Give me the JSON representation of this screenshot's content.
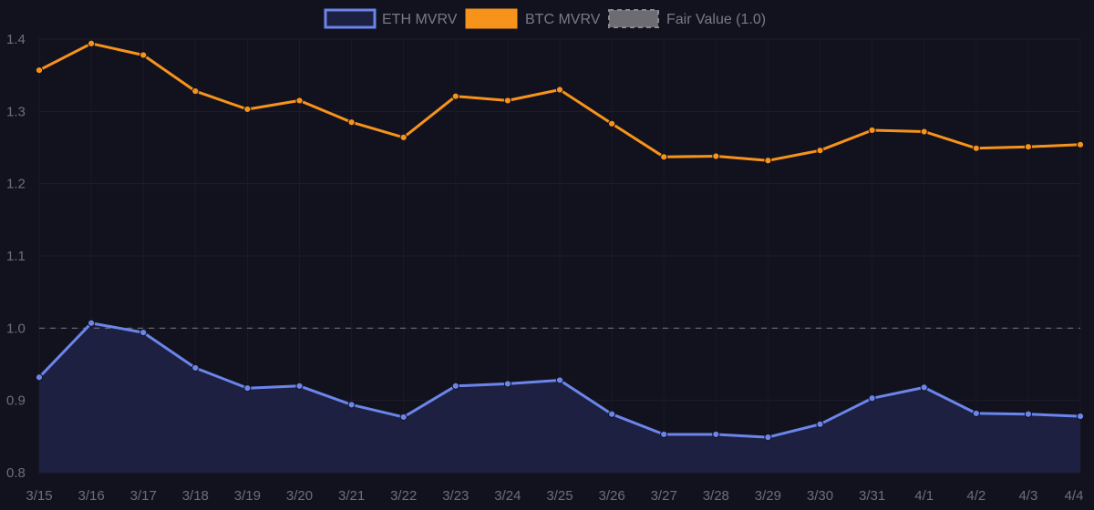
{
  "chart_data": {
    "type": "line",
    "categories": [
      "3/15",
      "3/16",
      "3/17",
      "3/18",
      "3/19",
      "3/20",
      "3/21",
      "3/22",
      "3/23",
      "3/24",
      "3/25",
      "3/26",
      "3/27",
      "3/28",
      "3/29",
      "3/30",
      "3/31",
      "4/1",
      "4/2",
      "4/3",
      "4/4"
    ],
    "series": [
      {
        "name": "ETH MVRV",
        "color": "#6b85ea",
        "fill": true,
        "values": [
          0.932,
          1.007,
          0.994,
          0.945,
          0.917,
          0.92,
          0.894,
          0.877,
          0.92,
          0.923,
          0.928,
          0.881,
          0.853,
          0.853,
          0.849,
          0.867,
          0.903,
          0.918,
          0.882,
          0.881,
          0.878
        ]
      },
      {
        "name": "BTC MVRV",
        "color": "#f7931a",
        "fill": false,
        "values": [
          1.357,
          1.394,
          1.378,
          1.328,
          1.303,
          1.315,
          1.285,
          1.264,
          1.321,
          1.315,
          1.33,
          1.283,
          1.237,
          1.238,
          1.232,
          1.246,
          1.274,
          1.272,
          1.249,
          1.251,
          1.254
        ]
      }
    ],
    "reference_line": {
      "name": "Fair Value (1.0)",
      "value": 1.0,
      "color": "#8a8a92"
    },
    "yticks": [
      "0.8",
      "0.9",
      "1.0",
      "1.1",
      "1.2",
      "1.3",
      "1.4"
    ],
    "ylim": [
      0.8,
      1.42
    ],
    "grid": true,
    "legend_position": "top-center",
    "title": "",
    "xlabel": "",
    "ylabel": ""
  }
}
